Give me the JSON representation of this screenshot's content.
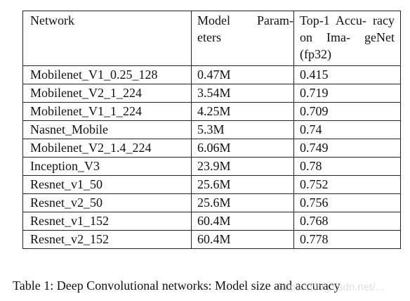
{
  "table": {
    "headers": [
      "Network",
      "Model Param- eters",
      "Top-1 Accu- racy on Ima- geNet (fp32)"
    ],
    "rows": [
      [
        "Mobilenet_V1_0.25_128",
        "0.47M",
        "0.415"
      ],
      [
        "Mobilenet_V2_1_224",
        "3.54M",
        "0.719"
      ],
      [
        "Mobilenet_V1_1_224",
        "4.25M",
        "0.709"
      ],
      [
        "Nasnet_Mobile",
        "5.3M",
        "0.74"
      ],
      [
        "Mobilenet_V2_1.4_224",
        "6.06M",
        "0.749"
      ],
      [
        "Inception_V3",
        "23.9M",
        "0.78"
      ],
      [
        "Resnet_v1_50",
        "25.6M",
        "0.752"
      ],
      [
        "Resnet_v2_50",
        "25.6M",
        "0.756"
      ],
      [
        "Resnet_v1_152",
        "60.4M",
        "0.768"
      ],
      [
        "Resnet_v2_152",
        "60.4M",
        "0.778"
      ]
    ]
  },
  "caption": "Table 1: Deep Convolutional networks: Model size and accuracy",
  "watermark": "https://blog.csdn.net/..."
}
